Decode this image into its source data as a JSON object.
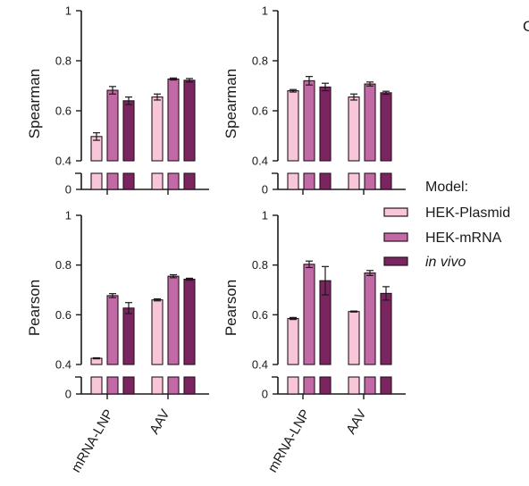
{
  "panel_letter": "C",
  "legend": {
    "title": "Model:",
    "items": [
      {
        "label": "HEK-Plasmid",
        "italic": false,
        "color": "#f7c6d9"
      },
      {
        "label": "HEK-mRNA",
        "italic": false,
        "color": "#c26aa5"
      },
      {
        "label": "in vivo",
        "italic": true,
        "color": "#7a2460"
      }
    ]
  },
  "colors": {
    "axis": "#1a1a1a",
    "bar_edge": "#2a1020"
  },
  "chart_data": [
    {
      "type": "bar",
      "ylabel": "Spearman",
      "ylim": [
        0.4,
        1
      ],
      "yticks": [
        "1",
        "0.8",
        "0.6",
        "0.4"
      ],
      "ybreak_tick": "0",
      "categories": [
        "mRNA-LNP",
        "AAV"
      ],
      "series": [
        {
          "name": "HEK-Plasmid",
          "values": [
            0.497,
            0.655
          ],
          "errors": [
            0.015,
            0.012
          ]
        },
        {
          "name": "HEK-mRNA",
          "values": [
            0.682,
            0.727
          ],
          "errors": [
            0.015,
            0.004
          ]
        },
        {
          "name": "in vivo",
          "values": [
            0.64,
            0.722
          ],
          "errors": [
            0.015,
            0.007
          ]
        }
      ]
    },
    {
      "type": "bar",
      "ylabel": "Spearman",
      "ylim": [
        0.4,
        1
      ],
      "yticks": [
        "1",
        "0.8",
        "0.6",
        "0.4"
      ],
      "ybreak_tick": "0",
      "categories": [
        "mRNA-LNP",
        "AAV"
      ],
      "series": [
        {
          "name": "HEK-Plasmid",
          "values": [
            0.68,
            0.655
          ],
          "errors": [
            0.005,
            0.012
          ]
        },
        {
          "name": "HEK-mRNA",
          "values": [
            0.72,
            0.707
          ],
          "errors": [
            0.017,
            0.008
          ]
        },
        {
          "name": "in vivo",
          "values": [
            0.695,
            0.672
          ],
          "errors": [
            0.015,
            0.006
          ]
        }
      ]
    },
    {
      "type": "bar",
      "ylabel": "Pearson",
      "ylim": [
        0.4,
        1
      ],
      "yticks": [
        "1",
        "0.8",
        "0.6",
        "0.4"
      ],
      "ybreak_tick": "0",
      "categories": [
        "mRNA-LNP",
        "AAV"
      ],
      "series": [
        {
          "name": "HEK-Plasmid",
          "values": [
            0.425,
            0.66
          ],
          "errors": [
            0.002,
            0.004
          ]
        },
        {
          "name": "HEK-mRNA",
          "values": [
            0.677,
            0.755
          ],
          "errors": [
            0.008,
            0.006
          ]
        },
        {
          "name": "in vivo",
          "values": [
            0.627,
            0.743
          ],
          "errors": [
            0.022,
            0.004
          ]
        }
      ]
    },
    {
      "type": "bar",
      "ylabel": "Pearson",
      "ylim": [
        0.4,
        1
      ],
      "yticks": [
        "1",
        "0.8",
        "0.6",
        "0.4"
      ],
      "ybreak_tick": "0",
      "categories": [
        "mRNA-LNP",
        "AAV"
      ],
      "series": [
        {
          "name": "HEK-Plasmid",
          "values": [
            0.585,
            0.613
          ],
          "errors": [
            0.004,
            0.002
          ]
        },
        {
          "name": "HEK-mRNA",
          "values": [
            0.803,
            0.768
          ],
          "errors": [
            0.013,
            0.01
          ]
        },
        {
          "name": "in vivo",
          "values": [
            0.737,
            0.686
          ],
          "errors": [
            0.057,
            0.027
          ]
        }
      ]
    }
  ]
}
